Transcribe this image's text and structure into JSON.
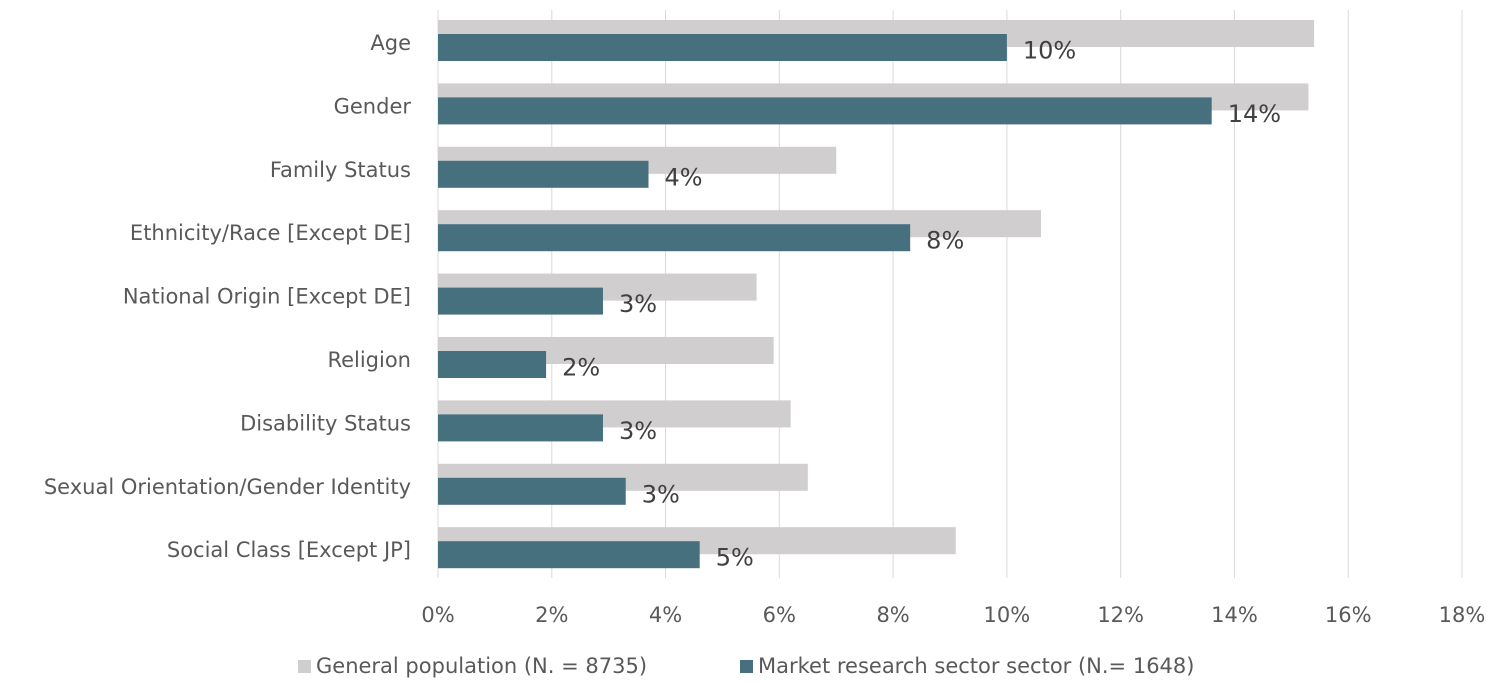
{
  "chart_data": {
    "type": "hbar",
    "categories": [
      "Age",
      "Gender",
      "Family Status",
      "Ethnicity/Race [Except DE]",
      "National Origin [Except DE]",
      "Religion",
      "Disability Status",
      "Sexual Orientation/Gender Identity",
      "Social Class [Except JP]"
    ],
    "series": [
      {
        "name": "General population (N. = 8735)",
        "color": "#d0cece",
        "values": [
          15.4,
          15.3,
          7.0,
          10.6,
          5.6,
          5.9,
          6.2,
          6.5,
          9.1
        ]
      },
      {
        "name": "Market research sector sector (N.= 1648)",
        "color": "#46707e",
        "values": [
          10.0,
          13.6,
          3.7,
          8.3,
          2.9,
          1.9,
          2.9,
          3.3,
          4.6
        ],
        "value_labels": [
          "10%",
          "14%",
          "4%",
          "8%",
          "3%",
          "2%",
          "3%",
          "3%",
          "5%"
        ]
      }
    ],
    "xlim": [
      0,
      18
    ],
    "xticks": [
      {
        "value": 0,
        "label": "0%"
      },
      {
        "value": 2,
        "label": "2%"
      },
      {
        "value": 4,
        "label": "4%"
      },
      {
        "value": 6,
        "label": "6%"
      },
      {
        "value": 8,
        "label": "8%"
      },
      {
        "value": 10,
        "label": "10%"
      },
      {
        "value": 12,
        "label": "12%"
      },
      {
        "value": 14,
        "label": "14%"
      },
      {
        "value": 16,
        "label": "16%"
      },
      {
        "value": 18,
        "label": "18%"
      }
    ],
    "grid": true,
    "legend": "bottom"
  }
}
